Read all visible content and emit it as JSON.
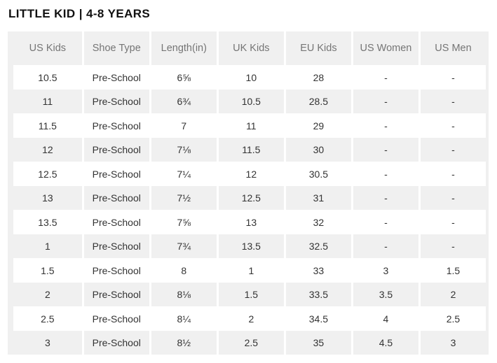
{
  "page": {
    "title": "LITTLE KID | 4-8 YEARS"
  },
  "colors": {
    "row_alt_gray": "#f0f0f0",
    "row_white": "#ffffff",
    "header_text": "#757575",
    "body_text": "#333333",
    "title_text": "#111111"
  },
  "table": {
    "columns": [
      "US Kids",
      "Shoe Type",
      "Length(in)",
      "UK Kids",
      "EU Kids",
      "US Women",
      "US Men"
    ],
    "rows": [
      [
        "10.5",
        "Pre-School",
        "6⅝",
        "10",
        "28",
        "-",
        "-"
      ],
      [
        "11",
        "Pre-School",
        "6¾",
        "10.5",
        "28.5",
        "-",
        "-"
      ],
      [
        "11.5",
        "Pre-School",
        "7",
        "11",
        "29",
        "-",
        "-"
      ],
      [
        "12",
        "Pre-School",
        "7⅛",
        "11.5",
        "30",
        "-",
        "-"
      ],
      [
        "12.5",
        "Pre-School",
        "7¼",
        "12",
        "30.5",
        "-",
        "-"
      ],
      [
        "13",
        "Pre-School",
        "7½",
        "12.5",
        "31",
        "-",
        "-"
      ],
      [
        "13.5",
        "Pre-School",
        "7⅝",
        "13",
        "32",
        "-",
        "-"
      ],
      [
        "1",
        "Pre-School",
        "7¾",
        "13.5",
        "32.5",
        "-",
        "-"
      ],
      [
        "1.5",
        "Pre-School",
        "8",
        "1",
        "33",
        "3",
        "1.5"
      ],
      [
        "2",
        "Pre-School",
        "8⅛",
        "1.5",
        "33.5",
        "3.5",
        "2"
      ],
      [
        "2.5",
        "Pre-School",
        "8¼",
        "2",
        "34.5",
        "4",
        "2.5"
      ],
      [
        "3",
        "Pre-School",
        "8½",
        "2.5",
        "35",
        "4.5",
        "3"
      ]
    ]
  }
}
